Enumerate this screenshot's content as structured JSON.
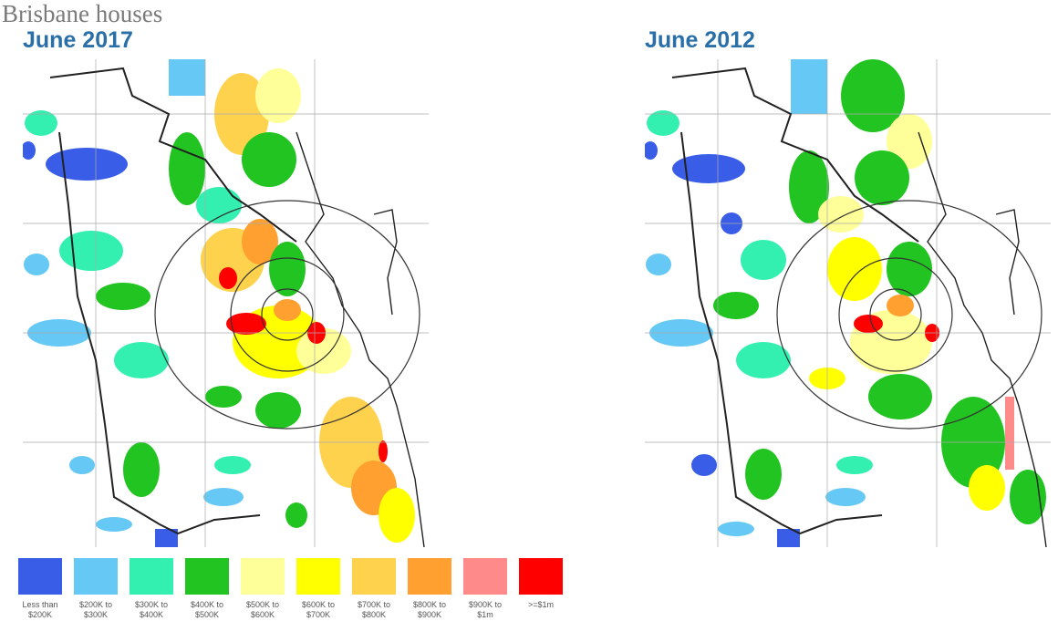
{
  "header": {
    "title": "Brisbane houses"
  },
  "maps": [
    {
      "label": "June 2017"
    },
    {
      "label": "June 2012"
    }
  ],
  "legend": [
    {
      "label": "Less than $200K",
      "color": "#3a5de8"
    },
    {
      "label": "$200K to $300K",
      "color": "#66c8f5"
    },
    {
      "label": "$300K to $400K",
      "color": "#33f0b0"
    },
    {
      "label": "$400K to $500K",
      "color": "#22c422"
    },
    {
      "label": "$500K to $600K",
      "color": "#ffff99"
    },
    {
      "label": "$600K to $700K",
      "color": "#ffff00"
    },
    {
      "label": "$700K to $800K",
      "color": "#ffd24d"
    },
    {
      "label": "$800K to $900K",
      "color": "#ffa030"
    },
    {
      "label": "$900K to $1m",
      "color": "#ff8a8a"
    },
    {
      "label": ">=$1m",
      "color": "#ff0000"
    }
  ]
}
